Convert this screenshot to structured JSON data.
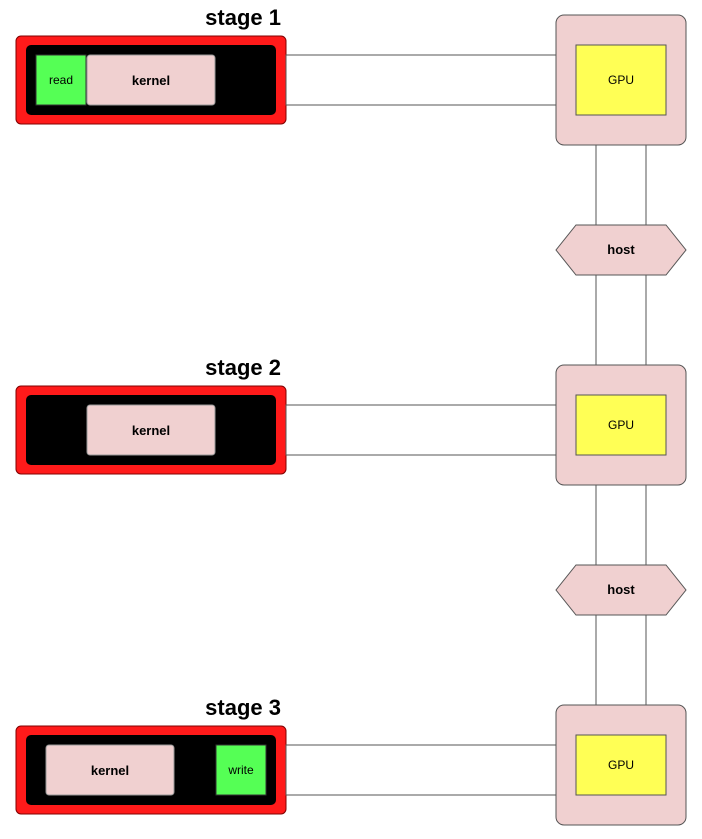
{
  "colors": {
    "outer_frame": "#ff1a1a",
    "inner_frame": "#000000",
    "kernel_fill": "#f0d0d0",
    "io_fill": "#55ff55",
    "gpu_outer": "#f0d0d0",
    "gpu_inner": "#ffff55",
    "host_fill": "#f0d0d0",
    "token_fill": "#ffff33"
  },
  "stages": [
    {
      "title": "stage 1",
      "read_label": "read",
      "kernel_label": "kernel",
      "gpu_label": "GPU"
    },
    {
      "title": "stage 2",
      "kernel_label": "kernel",
      "gpu_label": "GPU"
    },
    {
      "title": "stage 3",
      "kernel_label": "kernel",
      "write_label": "write",
      "gpu_label": "GPU"
    }
  ],
  "hosts": [
    {
      "label": "host"
    },
    {
      "label": "host"
    }
  ]
}
